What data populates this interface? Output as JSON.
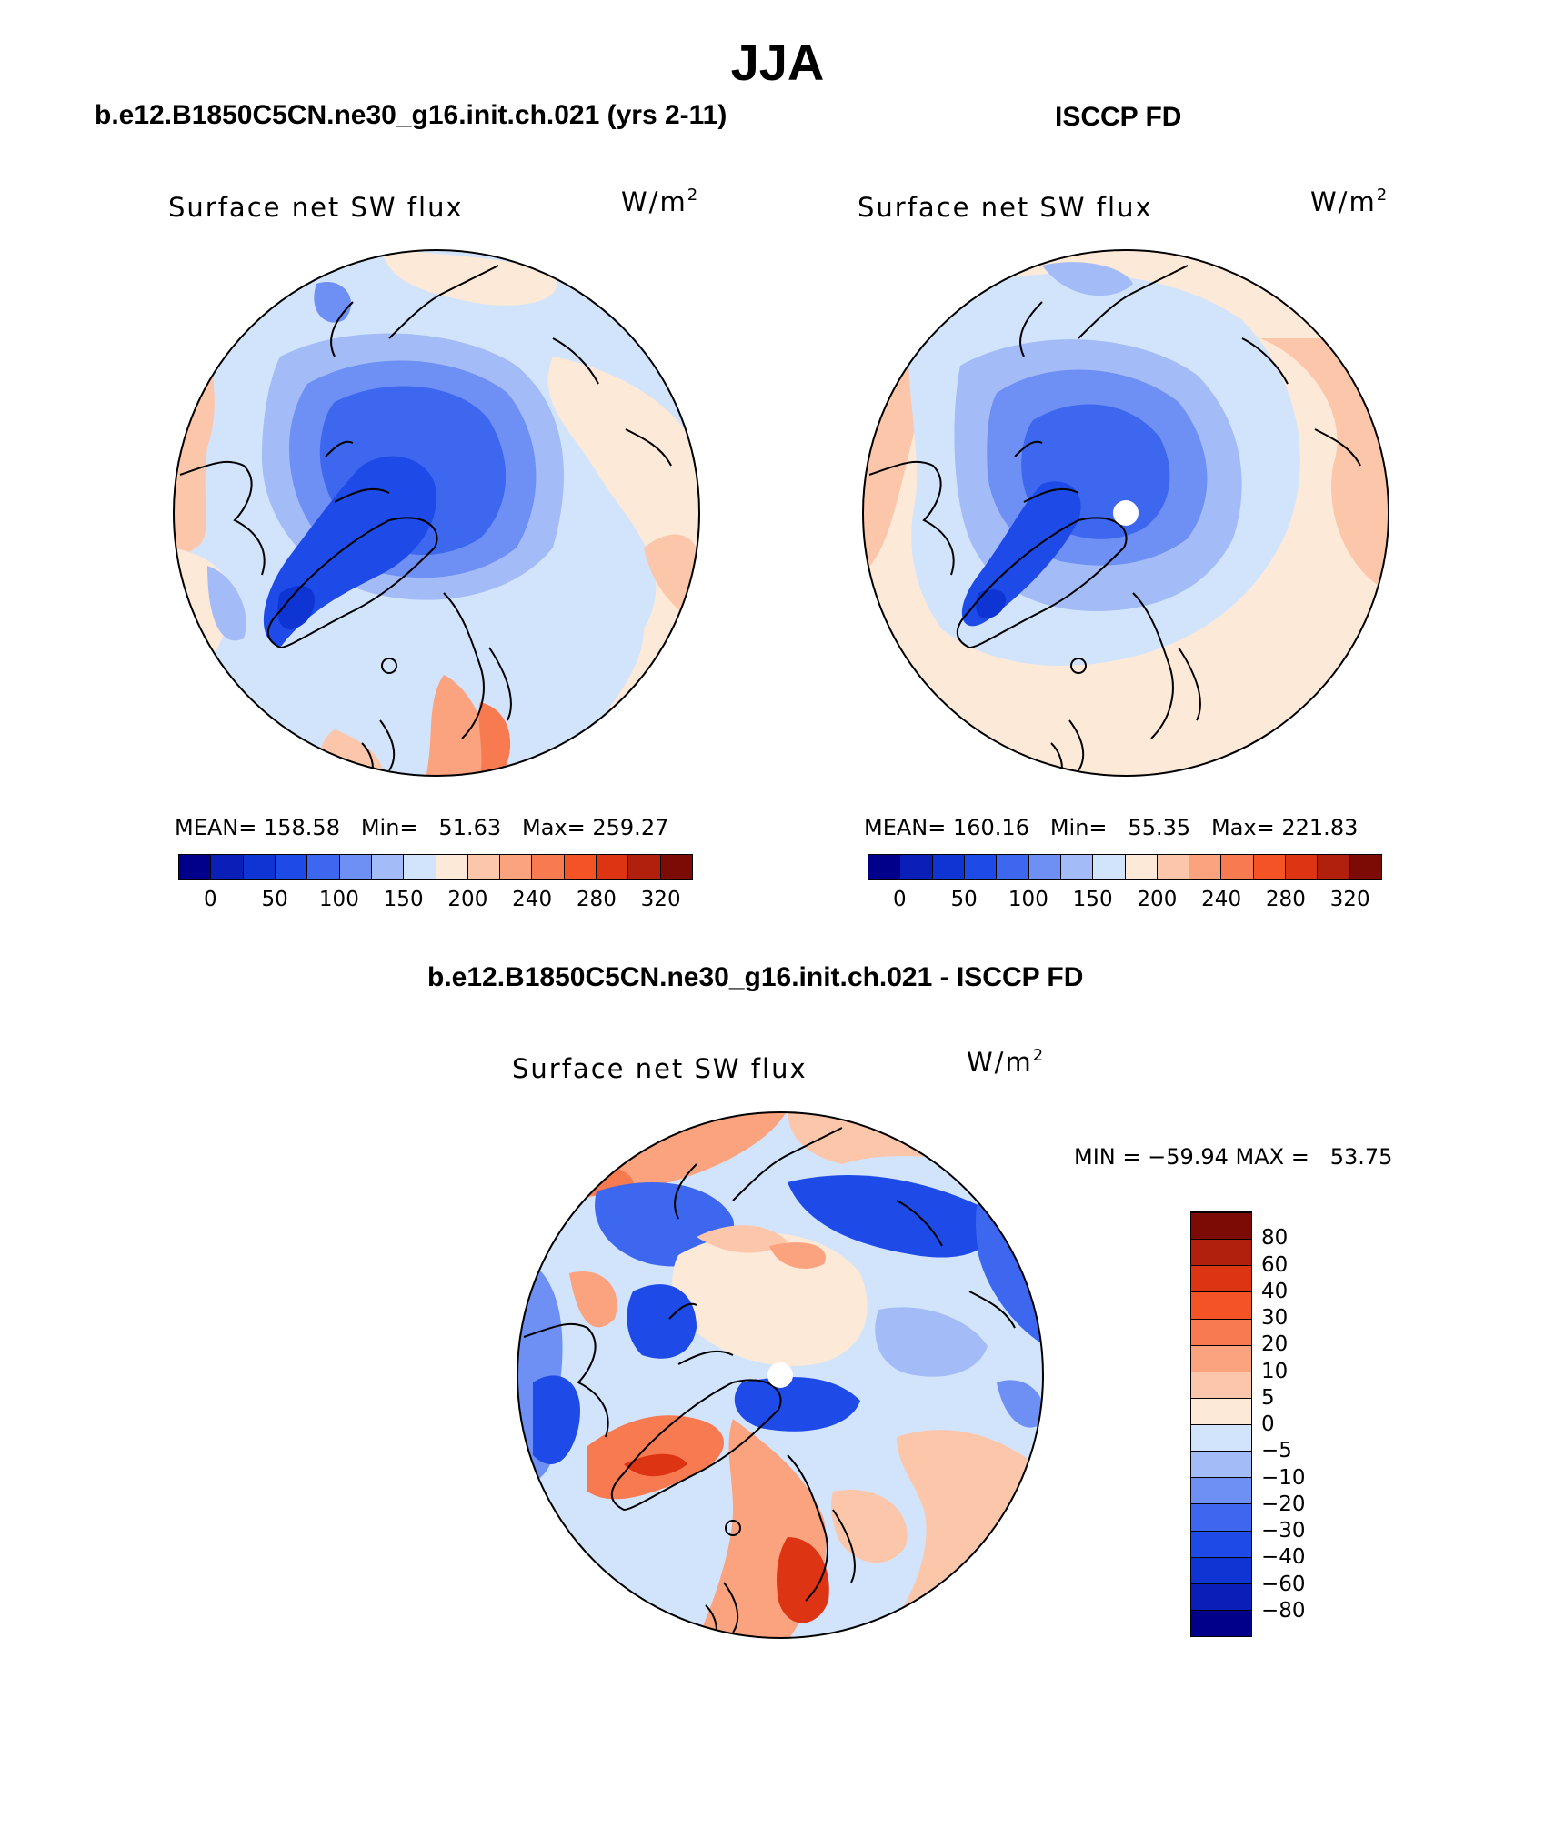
{
  "page": {
    "title": "JJA"
  },
  "panels": {
    "model": {
      "title": "b.e12.B1850C5CN.ne30_g16.init.ch.021 (yrs 2-11)",
      "variable": "Surface net SW flux",
      "units": "W/m",
      "units_exp": "2",
      "stats_text": "MEAN= 158.58   Min=   51.63   Max= 259.27"
    },
    "obs": {
      "title": "ISCCP FD",
      "variable": "Surface net SW flux",
      "units": "W/m",
      "units_exp": "2",
      "stats_text": "MEAN= 160.16   Min=   55.35   Max= 221.83"
    },
    "diff": {
      "title": "b.e12.B1850C5CN.ne30_g16.init.ch.021 - ISCCP FD",
      "variable": "Surface net SW flux",
      "units": "W/m",
      "units_exp": "2",
      "stats_text": "MIN = −59.94 MAX =   53.75"
    }
  },
  "colorbars": {
    "absolute": {
      "colors": [
        "#00008b",
        "#0a1fb8",
        "#0e34d4",
        "#1e4ae8",
        "#3d67ef",
        "#6e8ff3",
        "#a3bbf6",
        "#d2e4fb",
        "#fde9d8",
        "#fcc6aa",
        "#fba27f",
        "#f87a51",
        "#f45326",
        "#dd3413",
        "#b0200c",
        "#7c0a05"
      ],
      "labels": [
        "0",
        "50",
        "100",
        "150",
        "200",
        "240",
        "280",
        "320"
      ]
    },
    "difference": {
      "colors": [
        "#00008b",
        "#0a1fb8",
        "#0e34d4",
        "#1e4ae8",
        "#3d67ef",
        "#6e8ff3",
        "#a3bbf6",
        "#d2e4fb",
        "#fde9d8",
        "#fcc6aa",
        "#fba27f",
        "#f87a51",
        "#f45326",
        "#dd3413",
        "#b0200c",
        "#7c0a05"
      ],
      "labels": [
        "−80",
        "−60",
        "−40",
        "−30",
        "−20",
        "−10",
        "−5",
        "0",
        "5",
        "10",
        "20",
        "30",
        "40",
        "60",
        "80"
      ]
    }
  }
}
